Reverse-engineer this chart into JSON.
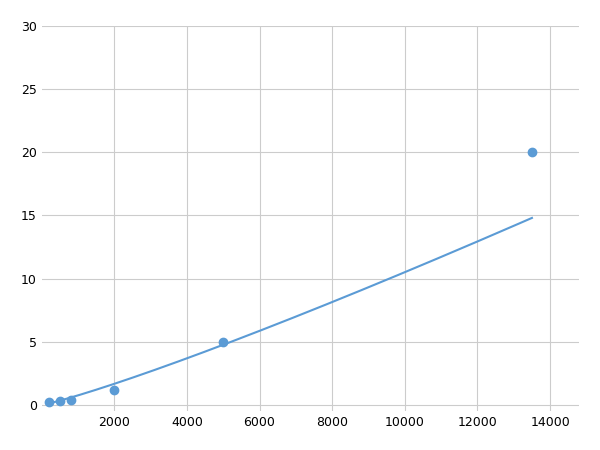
{
  "x": [
    200,
    500,
    800,
    2000,
    5000,
    13500
  ],
  "y": [
    0.2,
    0.3,
    0.4,
    1.2,
    5.0,
    20.0
  ],
  "line_color": "#5b9bd5",
  "marker_color": "#5b9bd5",
  "marker_size": 6,
  "marker_style": "o",
  "line_width": 1.5,
  "xlim": [
    0,
    14800
  ],
  "ylim": [
    -0.5,
    30
  ],
  "xticks": [
    2000,
    4000,
    6000,
    8000,
    10000,
    12000,
    14000
  ],
  "yticks": [
    0,
    5,
    10,
    15,
    20,
    25,
    30
  ],
  "grid_color": "#cccccc",
  "background_color": "#ffffff",
  "figsize": [
    6.0,
    4.5
  ],
  "dpi": 100
}
